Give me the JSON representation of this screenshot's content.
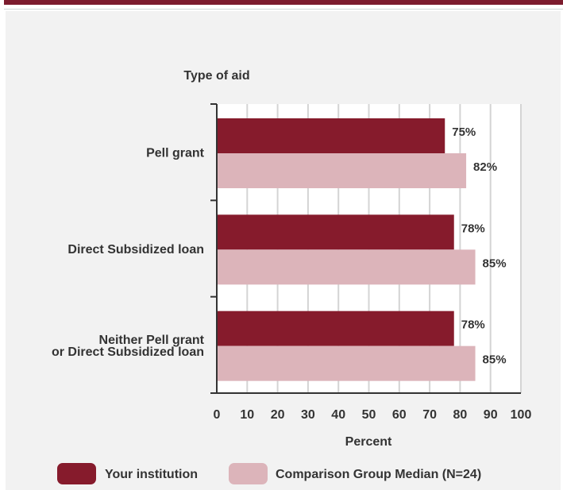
{
  "chart_data": {
    "type": "bar",
    "orientation": "horizontal",
    "title": "Type of aid",
    "xlabel": "Percent",
    "ylabel": "",
    "xlim": [
      0,
      100
    ],
    "x_ticks": [
      0,
      10,
      20,
      30,
      40,
      50,
      60,
      70,
      80,
      90,
      100
    ],
    "categories": [
      [
        "Pell grant"
      ],
      [
        "Direct Subsidized loan"
      ],
      [
        "Neither Pell grant",
        "or Direct Subsidized loan"
      ]
    ],
    "series": [
      {
        "name": "Your institution",
        "color": "#861b2c",
        "values": [
          75,
          78,
          78
        ],
        "labels": [
          "75%",
          "78%",
          "78%"
        ]
      },
      {
        "name": "Comparison Group Median (N=24)",
        "color": "#dcb4ba",
        "values": [
          82,
          85,
          85
        ],
        "labels": [
          "82%",
          "85%",
          "85%"
        ]
      }
    ],
    "grid": "vertical",
    "legend": "bottom"
  }
}
